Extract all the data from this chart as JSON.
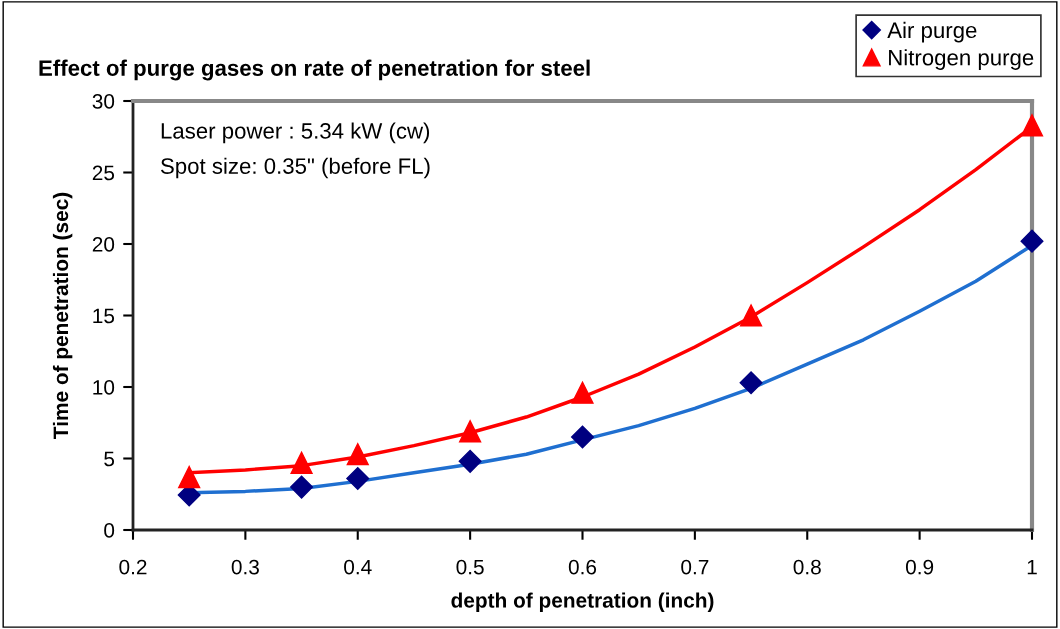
{
  "chart_data": {
    "type": "scatter",
    "title": "Effect of purge gases on rate of penetration for steel",
    "xlabel": "depth of penetration (inch)",
    "ylabel": "Time of penetration (sec)",
    "annotations": [
      "Laser power : 5.34 kW (cw)",
      "Spot size: 0.35\" (before FL)"
    ],
    "x": [
      0.25,
      0.35,
      0.4,
      0.5,
      0.6,
      0.75,
      1.0
    ],
    "series": [
      {
        "name": "Air purge",
        "color": "#000080",
        "marker": "diamond",
        "values": [
          2.45,
          3.0,
          3.6,
          4.8,
          6.5,
          10.3,
          20.2
        ]
      },
      {
        "name": "Nitrogen purge",
        "color": "#ff0000",
        "marker": "triangle",
        "values": [
          3.7,
          4.7,
          5.3,
          6.9,
          9.6,
          15.0,
          28.3
        ]
      },
      {
        "type": "line",
        "color": "#1f6fd0",
        "marker": "none",
        "x": [
          0.25,
          0.3,
          0.35,
          0.4,
          0.45,
          0.5,
          0.55,
          0.6,
          0.65,
          0.7,
          0.75,
          0.8,
          0.85,
          0.9,
          0.95,
          1.0
        ],
        "values": [
          2.6,
          2.7,
          2.9,
          3.4,
          4.0,
          4.6,
          5.3,
          6.3,
          7.3,
          8.5,
          9.9,
          11.6,
          13.3,
          15.3,
          17.4,
          19.9
        ]
      },
      {
        "type": "line",
        "color": "#ff0000",
        "marker": "none",
        "x": [
          0.25,
          0.3,
          0.35,
          0.4,
          0.45,
          0.5,
          0.55,
          0.6,
          0.65,
          0.7,
          0.75,
          0.8,
          0.85,
          0.9,
          0.95,
          1.0
        ],
        "values": [
          4.0,
          4.2,
          4.5,
          5.1,
          5.9,
          6.8,
          7.9,
          9.3,
          10.9,
          12.8,
          14.9,
          17.3,
          19.8,
          22.4,
          25.2,
          28.2
        ]
      }
    ],
    "xlim": [
      0.2,
      1.0
    ],
    "xticks": [
      0.2,
      0.3,
      0.4,
      0.5,
      0.6,
      0.7,
      0.8,
      0.9,
      1
    ],
    "ylim": [
      0,
      30
    ],
    "yticks": [
      0,
      5,
      10,
      15,
      20,
      25,
      30
    ],
    "grid": false,
    "legend": "top right"
  }
}
